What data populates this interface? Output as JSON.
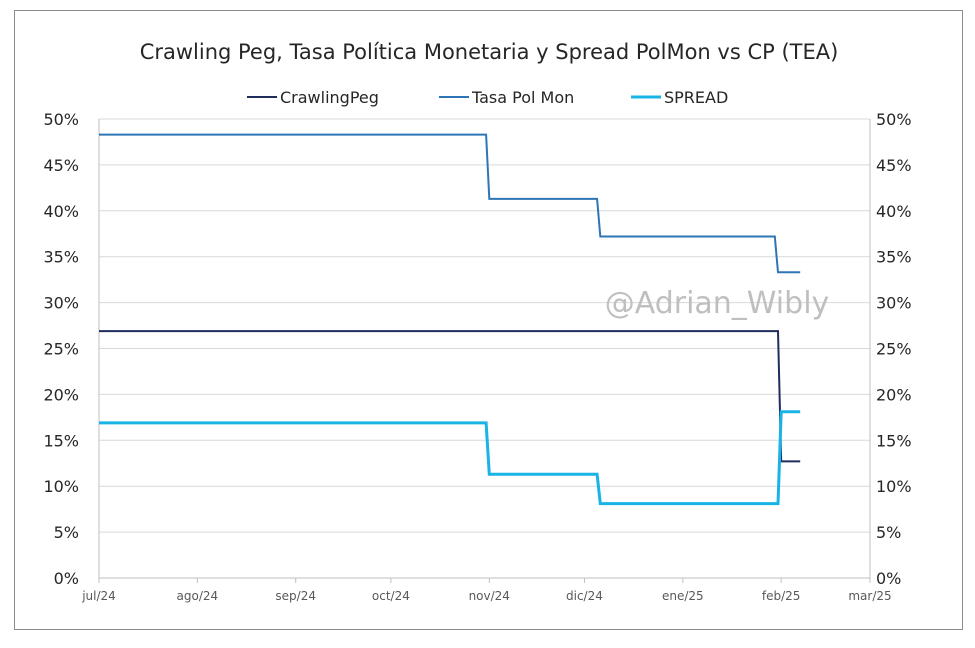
{
  "chart_data": {
    "type": "line",
    "title": "Crawling Peg, Tasa Política Monetaria y Spread PolMon vs CP (TEA)",
    "x_tick_labels": [
      "jul/24",
      "ago/24",
      "sep/24",
      "oct/24",
      "nov/24",
      "dic/24",
      "ene/25",
      "feb/25",
      "mar/25"
    ],
    "x_range": [
      "2024-07-01",
      "2025-03-01"
    ],
    "y_tick_labels_left": [
      "0%",
      "5%",
      "10%",
      "15%",
      "20%",
      "25%",
      "30%",
      "35%",
      "40%",
      "45%",
      "50%"
    ],
    "y_tick_labels_right": [
      "0%",
      "5%",
      "10%",
      "15%",
      "20%",
      "25%",
      "30%",
      "35%",
      "40%",
      "45%",
      "50%"
    ],
    "ylim": [
      0,
      50
    ],
    "y_grid_step": 5,
    "grid": "horizontal",
    "legend_position": "top-center",
    "series": [
      {
        "name": "CrawlingPeg",
        "color": "#1f2c5c",
        "points": [
          [
            "2024-07-01",
            26.9
          ],
          [
            "2024-12-31",
            26.9
          ],
          [
            "2025-01-31",
            26.9
          ],
          [
            "2025-02-01",
            12.7
          ],
          [
            "2025-02-07",
            12.7
          ]
        ]
      },
      {
        "name": "Tasa Pol Mon",
        "color": "#2e75b6",
        "points": [
          [
            "2024-07-01",
            48.3
          ],
          [
            "2024-10-31",
            48.3
          ],
          [
            "2024-11-01",
            41.3
          ],
          [
            "2024-12-05",
            41.3
          ],
          [
            "2024-12-06",
            37.2
          ],
          [
            "2025-01-30",
            37.2
          ],
          [
            "2025-01-31",
            33.3
          ],
          [
            "2025-02-07",
            33.3
          ]
        ]
      },
      {
        "name": "SPREAD",
        "color": "#19b3e6",
        "points": [
          [
            "2024-07-01",
            16.9
          ],
          [
            "2024-10-31",
            16.9
          ],
          [
            "2024-11-01",
            11.3
          ],
          [
            "2024-12-05",
            11.3
          ],
          [
            "2024-12-06",
            8.1
          ],
          [
            "2025-01-30",
            8.1
          ],
          [
            "2025-01-31",
            8.1
          ],
          [
            "2025-02-01",
            18.1
          ],
          [
            "2025-02-07",
            18.1
          ]
        ]
      }
    ]
  },
  "watermark": "@Adrian_Wibly"
}
